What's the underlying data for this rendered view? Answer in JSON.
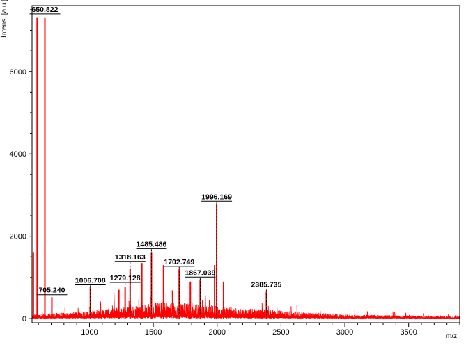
{
  "chart_data": {
    "type": "line",
    "xlabel": "m/z",
    "ylabel": "Intens. [a.u.]",
    "xlim": [
      550,
      3900
    ],
    "ylim": [
      -100,
      7600
    ],
    "x_ticks": [
      1000,
      1500,
      2000,
      2500,
      3000,
      3500
    ],
    "y_ticks": [
      0,
      2000,
      4000,
      6000
    ],
    "grid": false,
    "colors": {
      "spectrum": "#ff0000",
      "axis": "#000000",
      "marker": "#000000"
    },
    "peaks": [
      {
        "label": "650.822",
        "x": 650.822,
        "y": 7300,
        "label_y": 7400
      },
      {
        "label": "705.240",
        "x": 705.24,
        "y": 520,
        "label_y": 580
      },
      {
        "label": "1006.708",
        "x": 1006.708,
        "y": 760,
        "label_y": 820
      },
      {
        "label": "1279.128",
        "x": 1279.128,
        "y": 760,
        "label_y": 880
      },
      {
        "label": "1318.163",
        "x": 1318.163,
        "y": 1200,
        "label_y": 1390
      },
      {
        "label": "1485.486",
        "x": 1485.486,
        "y": 1600,
        "label_y": 1700
      },
      {
        "label": "1702.749",
        "x": 1702.749,
        "y": 1200,
        "label_y": 1270
      },
      {
        "label": "1867.039",
        "x": 1867.039,
        "y": 950,
        "label_y": 1010
      },
      {
        "label": "1996.169",
        "x": 1996.169,
        "y": 2780,
        "label_y": 2850
      },
      {
        "label": "2385.735",
        "x": 2385.735,
        "y": 650,
        "label_y": 720
      }
    ],
    "extra_peaks": [
      {
        "x": 560,
        "y": 1600
      },
      {
        "x": 590,
        "y": 7300
      },
      {
        "x": 1230,
        "y": 700
      },
      {
        "x": 1410,
        "y": 1350
      },
      {
        "x": 1580,
        "y": 1300
      },
      {
        "x": 1790,
        "y": 900
      },
      {
        "x": 1980,
        "y": 1300
      },
      {
        "x": 2050,
        "y": 900
      }
    ]
  }
}
